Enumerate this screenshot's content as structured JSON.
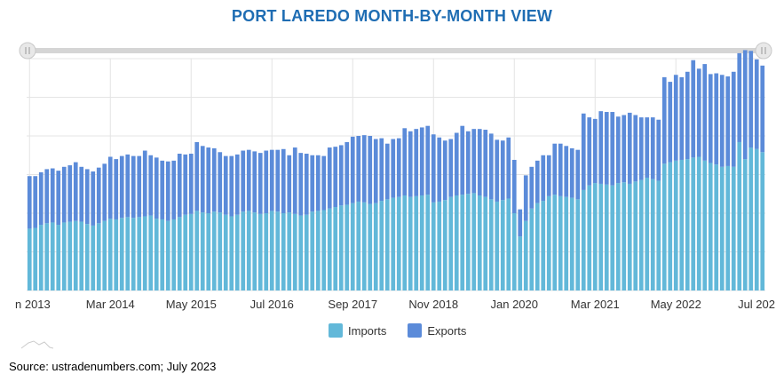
{
  "header": {
    "title": "PORT LAREDO MONTH-BY-MONTH VIEW"
  },
  "legend": {
    "imports_label": "Imports",
    "exports_label": "Exports"
  },
  "source": "Source: ustradenumbers.com; July 2023",
  "colors": {
    "imports": "#62b8d9",
    "exports": "#5b8bd9",
    "title": "#1f6db3",
    "grid": "#e4e4e4",
    "scrollbar": "#d5d5d5"
  },
  "chart_data": {
    "type": "bar",
    "stacked": true,
    "title": "PORT LAREDO MONTH-BY-MONTH VIEW",
    "xlabel": "",
    "ylabel": "",
    "y_axis_labels_visible": false,
    "ylim": [
      0,
      30
    ],
    "grid": true,
    "legend_position": "bottom-center",
    "x_tick_labels": [
      "n 2013",
      "Mar 2014",
      "May 2015",
      "Jul 2016",
      "Sep 2017",
      "Nov 2018",
      "Jan 2020",
      "Mar 2021",
      "May 2022",
      "Jul 202"
    ],
    "x_tick_indices": [
      0,
      14,
      28,
      42,
      56,
      70,
      84,
      98,
      112,
      126
    ],
    "series": [
      {
        "name": "Imports",
        "values": [
          8.0,
          8.1,
          8.5,
          8.7,
          8.8,
          8.5,
          8.8,
          8.9,
          9.0,
          8.9,
          8.6,
          8.4,
          8.7,
          9.0,
          9.3,
          9.2,
          9.4,
          9.5,
          9.4,
          9.5,
          9.6,
          9.7,
          9.3,
          9.2,
          9.0,
          9.2,
          9.5,
          9.8,
          9.9,
          10.3,
          10.1,
          10.0,
          10.2,
          10.1,
          9.8,
          9.6,
          9.8,
          10.2,
          10.3,
          10.1,
          9.9,
          10.0,
          10.3,
          10.2,
          10.0,
          10.1,
          9.9,
          9.7,
          9.8,
          10.2,
          10.3,
          10.4,
          10.6,
          10.8,
          11.0,
          11.1,
          11.3,
          11.5,
          11.4,
          11.2,
          11.3,
          11.6,
          11.8,
          12.0,
          12.1,
          12.3,
          12.1,
          12.2,
          12.3,
          12.4,
          11.4,
          11.5,
          11.7,
          12.1,
          12.3,
          12.4,
          12.5,
          12.6,
          12.3,
          12.1,
          11.8,
          11.5,
          11.7,
          11.9,
          10.0,
          7.0,
          9.0,
          10.6,
          11.3,
          11.6,
          12.2,
          12.4,
          12.2,
          12.1,
          12.0,
          11.8,
          13.0,
          13.6,
          13.9,
          13.8,
          13.7,
          13.6,
          13.9,
          14.0,
          13.8,
          14.1,
          14.3,
          14.6,
          14.4,
          14.2,
          16.4,
          16.6,
          16.8,
          16.9,
          17.0,
          17.2,
          17.3,
          16.8,
          16.5,
          16.3,
          16.0,
          16.1,
          16.0,
          19.2,
          17.0,
          18.5,
          18.3,
          17.9
        ],
        "color": "#62b8d9"
      },
      {
        "name": "Exports",
        "values": [
          6.8,
          6.7,
          6.8,
          7.0,
          7.0,
          7.0,
          7.2,
          7.3,
          7.6,
          7.1,
          7.1,
          7.0,
          7.2,
          7.4,
          8.0,
          7.8,
          8.0,
          8.1,
          8.0,
          7.9,
          8.5,
          7.8,
          7.9,
          7.6,
          7.7,
          7.6,
          8.2,
          7.8,
          7.8,
          8.9,
          8.6,
          8.5,
          8.2,
          7.8,
          7.6,
          7.8,
          7.8,
          7.9,
          7.9,
          7.9,
          7.9,
          8.1,
          7.9,
          8.0,
          8.3,
          7.4,
          8.6,
          8.1,
          7.9,
          7.3,
          7.2,
          7.0,
          7.9,
          7.8,
          7.8,
          8.1,
          8.6,
          8.5,
          8.7,
          8.8,
          8.3,
          8.1,
          7.2,
          7.6,
          7.6,
          8.7,
          8.5,
          8.7,
          8.8,
          8.9,
          8.8,
          8.3,
          7.7,
          7.5,
          8.1,
          8.9,
          8.1,
          8.3,
          8.6,
          8.7,
          8.5,
          8.0,
          7.7,
          7.9,
          6.9,
          3.5,
          5.9,
          5.4,
          5.5,
          5.9,
          5.3,
          6.6,
          6.8,
          6.6,
          6.4,
          6.4,
          9.9,
          8.8,
          8.3,
          9.4,
          9.4,
          9.5,
          8.6,
          8.7,
          9.2,
          8.6,
          8.1,
          7.8,
          8.0,
          7.9,
          11.2,
          10.4,
          11.1,
          10.7,
          11.3,
          12.6,
          11.4,
          12.5,
          11.5,
          11.8,
          11.9,
          11.6,
          12.3,
          11.5,
          14.1,
          12.5,
          11.6,
          11.2
        ],
        "color": "#5b8bd9"
      }
    ]
  }
}
